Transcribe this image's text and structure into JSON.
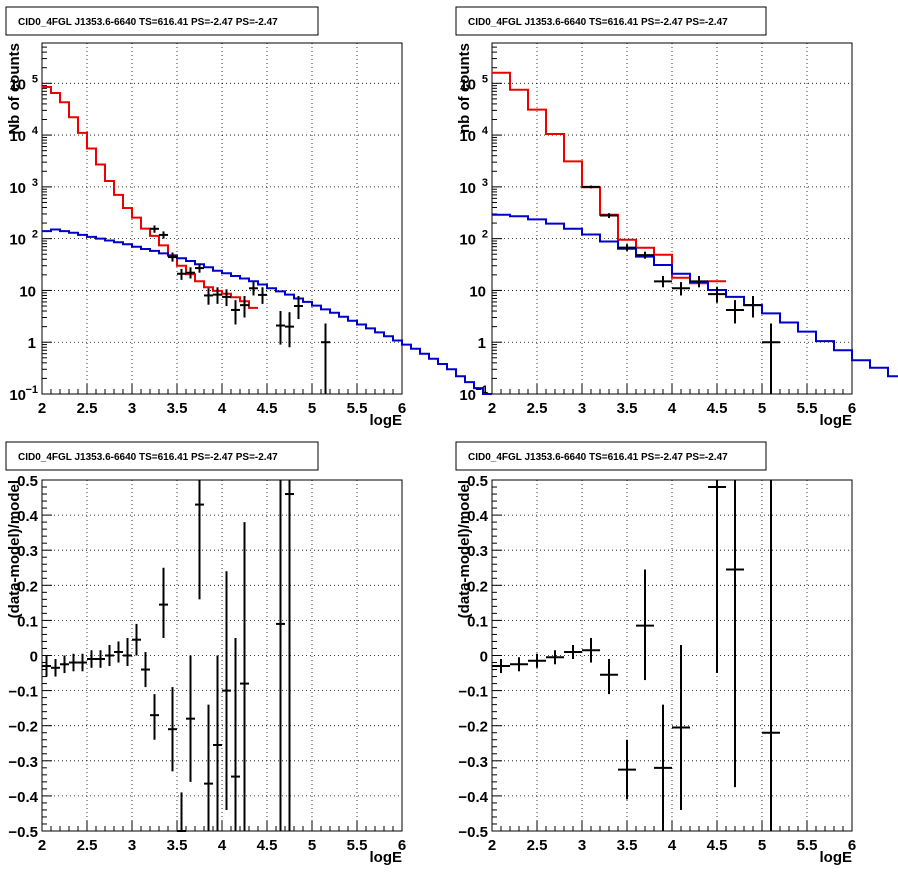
{
  "chart_data": [
    {
      "type": "histogram-with-points",
      "title": "CID0_4FGL J1353.6-6640 TS=616.41 PS=-2.47 PS=-2.47",
      "xlabel": "logE",
      "ylabel": "Nb of counts",
      "xlim": [
        2,
        6
      ],
      "ylim": [
        0.1,
        600000
      ],
      "log_y": true,
      "grid": true,
      "x_ticks": [
        "2",
        "2.5",
        "3",
        "3.5",
        "4",
        "4.5",
        "5",
        "5.5",
        "6"
      ],
      "y_ticks": [
        {
          "v": 0.1,
          "label": "10",
          "sup": "−1"
        },
        {
          "v": 1,
          "label": "1",
          "sup": ""
        },
        {
          "v": 10,
          "label": "10",
          "sup": ""
        },
        {
          "v": 100,
          "label": "10",
          "sup": "2"
        },
        {
          "v": 1000,
          "label": "10",
          "sup": "3"
        },
        {
          "v": 10000,
          "label": "10",
          "sup": "4"
        },
        {
          "v": 100000,
          "label": "10",
          "sup": "5"
        }
      ],
      "series": [
        {
          "color": "#ee0000",
          "bin_width": 0.1,
          "x_start": 2.0,
          "values": [
            85000,
            65000,
            43000,
            22000,
            11000,
            5500,
            2700,
            1300,
            700,
            390,
            255,
            156,
            113,
            74,
            48,
            30,
            20.5,
            15,
            11.5,
            9.8,
            8.6,
            7.4,
            6.2,
            4.6
          ]
        },
        {
          "color": "#0000cc",
          "bin_width": 0.1,
          "x_start": 2.0,
          "values": [
            140,
            150,
            140,
            130,
            118,
            108,
            100,
            92,
            85,
            78,
            70,
            63,
            58,
            52,
            47,
            42,
            37,
            32,
            28,
            24,
            21.5,
            19,
            17,
            15,
            13,
            11,
            9.6,
            8.3,
            7.0,
            6.0,
            5.1,
            4.3,
            3.7,
            3.1,
            2.6,
            2.2,
            1.85,
            1.55,
            1.3,
            1.08,
            0.9,
            0.75,
            0.6,
            0.48,
            0.38,
            0.3,
            0.22,
            0.17,
            0.13,
            0.1
          ]
        }
      ],
      "points": [
        {
          "x": 3.25,
          "y": 155,
          "lo": 130,
          "hi": 180
        },
        {
          "x": 3.35,
          "y": 118,
          "lo": 100,
          "hi": 138
        },
        {
          "x": 3.45,
          "y": 44,
          "lo": 36,
          "hi": 54
        },
        {
          "x": 3.55,
          "y": 21,
          "lo": 16,
          "hi": 26
        },
        {
          "x": 3.65,
          "y": 22,
          "lo": 17,
          "hi": 28
        },
        {
          "x": 3.75,
          "y": 27,
          "lo": 22,
          "hi": 33
        },
        {
          "x": 3.85,
          "y": 8,
          "lo": 5.3,
          "hi": 11
        },
        {
          "x": 3.95,
          "y": 8.3,
          "lo": 5.5,
          "hi": 11.5
        },
        {
          "x": 4.05,
          "y": 7.5,
          "lo": 5.0,
          "hi": 10.5
        },
        {
          "x": 4.15,
          "y": 4.2,
          "lo": 2.2,
          "hi": 6.5
        },
        {
          "x": 4.25,
          "y": 5.2,
          "lo": 3.0,
          "hi": 7.8
        },
        {
          "x": 4.35,
          "y": 11,
          "lo": 8.0,
          "hi": 14.5
        },
        {
          "x": 4.45,
          "y": 8.2,
          "lo": 5.5,
          "hi": 11.5
        },
        {
          "x": 4.65,
          "y": 2.1,
          "lo": 0.9,
          "hi": 4.0
        },
        {
          "x": 4.75,
          "y": 2.0,
          "lo": 0.8,
          "hi": 3.8
        },
        {
          "x": 4.85,
          "y": 5.0,
          "lo": 2.8,
          "hi": 7.8
        },
        {
          "x": 5.15,
          "y": 1.0,
          "lo": 0.1,
          "hi": 2.3
        }
      ]
    },
    {
      "type": "histogram-with-points",
      "title": "CID0_4FGL J1353.6-6640 TS=616.41 PS=-2.47 PS=-2.47",
      "xlabel": "logE",
      "ylabel": "nb of counts",
      "xlim": [
        2,
        6
      ],
      "ylim": [
        0.1,
        600000
      ],
      "log_y": true,
      "grid": true,
      "x_ticks": [
        "2",
        "2.5",
        "3",
        "3.5",
        "4",
        "4.5",
        "5",
        "5.5",
        "6"
      ],
      "y_ticks": [
        {
          "v": 0.1,
          "label": "10",
          "sup": "−1"
        },
        {
          "v": 1,
          "label": "1",
          "sup": ""
        },
        {
          "v": 10,
          "label": "10",
          "sup": ""
        },
        {
          "v": 100,
          "label": "10",
          "sup": "2"
        },
        {
          "v": 1000,
          "label": "10",
          "sup": "3"
        },
        {
          "v": 10000,
          "label": "10",
          "sup": "4"
        },
        {
          "v": 100000,
          "label": "10",
          "sup": "5"
        }
      ],
      "series": [
        {
          "color": "#ee0000",
          "bin_width": 0.2,
          "x_start": 2.0,
          "values": [
            160000,
            75000,
            31000,
            10500,
            3100,
            980,
            290,
            95,
            67,
            49,
            17.5,
            13.8,
            15
          ]
        },
        {
          "color": "#0000cc",
          "bin_width": 0.2,
          "x_start": 2.0,
          "values": [
            290,
            270,
            235,
            195,
            155,
            120,
            88,
            64,
            45,
            31,
            21,
            14.5,
            10.2,
            7.5,
            5.2,
            3.6,
            2.4,
            1.6,
            1.05,
            0.7,
            0.45,
            0.32,
            0.22
          ]
        }
      ],
      "points": [
        {
          "x": 3.1,
          "y": 1000,
          "lo": 940,
          "hi": 1060
        },
        {
          "x": 3.3,
          "y": 280,
          "lo": 250,
          "hi": 310
        },
        {
          "x": 3.5,
          "y": 67,
          "lo": 58,
          "hi": 78
        },
        {
          "x": 3.7,
          "y": 48,
          "lo": 41,
          "hi": 56
        },
        {
          "x": 3.9,
          "y": 15,
          "lo": 11.5,
          "hi": 19
        },
        {
          "x": 4.1,
          "y": 11,
          "lo": 8.0,
          "hi": 14.5
        },
        {
          "x": 4.3,
          "y": 15,
          "lo": 11.5,
          "hi": 19
        },
        {
          "x": 4.5,
          "y": 8.5,
          "lo": 5.8,
          "hi": 11.8
        },
        {
          "x": 4.7,
          "y": 4.2,
          "lo": 2.3,
          "hi": 6.5
        },
        {
          "x": 4.9,
          "y": 5.2,
          "lo": 3.0,
          "hi": 7.8
        },
        {
          "x": 5.1,
          "y": 1.0,
          "lo": 0.1,
          "hi": 2.3
        }
      ]
    },
    {
      "type": "residuals",
      "title": "CID0_4FGL J1353.6-6640 TS=616.41 PS=-2.47 PS=-2.47",
      "xlabel": "logE",
      "ylabel": "(data-model)/model",
      "xlim": [
        2,
        6
      ],
      "ylim": [
        -0.5,
        0.5
      ],
      "grid": true,
      "x_ticks": [
        "2",
        "2.5",
        "3",
        "3.5",
        "4",
        "4.5",
        "5",
        "5.5",
        "6"
      ],
      "y_ticks": [
        "−0.5",
        "−0.4",
        "−0.3",
        "−0.2",
        "−0.1",
        "0",
        "0.1",
        "0.2",
        "0.3",
        "0.4",
        "0.5"
      ],
      "half_width": 0.05,
      "points": [
        {
          "x": 2.05,
          "y": -0.03,
          "lo": -0.06,
          "hi": 0.0
        },
        {
          "x": 2.15,
          "y": -0.035,
          "lo": -0.06,
          "hi": -0.01
        },
        {
          "x": 2.25,
          "y": -0.025,
          "lo": -0.05,
          "hi": 0.0
        },
        {
          "x": 2.35,
          "y": -0.02,
          "lo": -0.045,
          "hi": 0.005
        },
        {
          "x": 2.45,
          "y": -0.02,
          "lo": -0.045,
          "hi": 0.005
        },
        {
          "x": 2.55,
          "y": -0.01,
          "lo": -0.035,
          "hi": 0.015
        },
        {
          "x": 2.65,
          "y": -0.01,
          "lo": -0.035,
          "hi": 0.015
        },
        {
          "x": 2.75,
          "y": 0.0,
          "lo": -0.03,
          "hi": 0.03
        },
        {
          "x": 2.85,
          "y": 0.01,
          "lo": -0.02,
          "hi": 0.04
        },
        {
          "x": 2.95,
          "y": 0.0,
          "lo": -0.03,
          "hi": 0.05
        },
        {
          "x": 3.05,
          "y": 0.045,
          "lo": 0.0,
          "hi": 0.09
        },
        {
          "x": 3.15,
          "y": -0.04,
          "lo": -0.09,
          "hi": 0.01
        },
        {
          "x": 3.25,
          "y": -0.17,
          "lo": -0.24,
          "hi": -0.11
        },
        {
          "x": 3.35,
          "y": 0.145,
          "lo": 0.05,
          "hi": 0.25
        },
        {
          "x": 3.45,
          "y": -0.21,
          "lo": -0.33,
          "hi": -0.09
        },
        {
          "x": 3.55,
          "y": -0.5,
          "lo": -0.5,
          "hi": -0.39
        },
        {
          "x": 3.65,
          "y": -0.18,
          "lo": -0.36,
          "hi": -0.0
        },
        {
          "x": 3.75,
          "y": 0.43,
          "lo": 0.16,
          "hi": 0.5
        },
        {
          "x": 3.85,
          "y": -0.365,
          "lo": -0.5,
          "hi": -0.14
        },
        {
          "x": 3.95,
          "y": -0.255,
          "lo": -0.5,
          "hi": 0.0
        },
        {
          "x": 4.05,
          "y": -0.1,
          "lo": -0.44,
          "hi": 0.24
        },
        {
          "x": 4.15,
          "y": -0.345,
          "lo": -0.5,
          "hi": 0.05
        },
        {
          "x": 4.25,
          "y": -0.08,
          "lo": -0.5,
          "hi": 0.38
        },
        {
          "x": 4.65,
          "y": 0.09,
          "lo": -0.5,
          "hi": 0.5
        },
        {
          "x": 4.75,
          "y": 0.46,
          "lo": -0.5,
          "hi": 0.5
        }
      ]
    },
    {
      "type": "residuals",
      "title": "CID0_4FGL J1353.6-6640 TS=616.41 PS=-2.47 PS=-2.47",
      "xlabel": "logE",
      "ylabel": "(data-model)/model",
      "xlim": [
        2,
        6
      ],
      "ylim": [
        -0.5,
        0.5
      ],
      "grid": true,
      "x_ticks": [
        "2",
        "2.5",
        "3",
        "3.5",
        "4",
        "4.5",
        "5",
        "5.5",
        "6"
      ],
      "y_ticks": [
        "−0.5",
        "−0.4",
        "−0.3",
        "−0.2",
        "−0.1",
        "0",
        "0.1",
        "0.2",
        "0.3",
        "0.4",
        "0.5"
      ],
      "half_width": 0.1,
      "points": [
        {
          "x": 2.1,
          "y": -0.03,
          "lo": -0.05,
          "hi": -0.01
        },
        {
          "x": 2.3,
          "y": -0.025,
          "lo": -0.045,
          "hi": -0.005
        },
        {
          "x": 2.5,
          "y": -0.015,
          "lo": -0.035,
          "hi": 0.005
        },
        {
          "x": 2.7,
          "y": -0.005,
          "lo": -0.025,
          "hi": 0.015
        },
        {
          "x": 2.9,
          "y": 0.01,
          "lo": -0.01,
          "hi": 0.03
        },
        {
          "x": 3.1,
          "y": 0.015,
          "lo": -0.02,
          "hi": 0.05
        },
        {
          "x": 3.3,
          "y": -0.055,
          "lo": -0.11,
          "hi": -0.01
        },
        {
          "x": 3.5,
          "y": -0.325,
          "lo": -0.41,
          "hi": -0.24
        },
        {
          "x": 3.7,
          "y": 0.085,
          "lo": -0.07,
          "hi": 0.245
        },
        {
          "x": 3.9,
          "y": -0.32,
          "lo": -0.5,
          "hi": -0.14
        },
        {
          "x": 4.1,
          "y": -0.205,
          "lo": -0.44,
          "hi": 0.03
        },
        {
          "x": 4.5,
          "y": 0.48,
          "lo": -0.05,
          "hi": 0.5
        },
        {
          "x": 4.7,
          "y": 0.245,
          "lo": -0.375,
          "hi": 0.5
        },
        {
          "x": 5.1,
          "y": -0.22,
          "lo": -0.5,
          "hi": 0.5
        }
      ]
    }
  ]
}
